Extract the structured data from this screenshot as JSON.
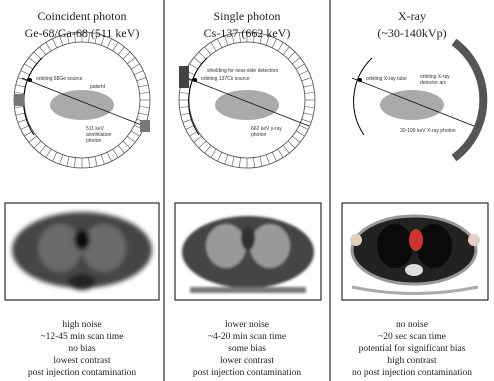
{
  "columns": [
    {
      "title": [
        "Coincident photon",
        "Ge-68/Ga-68 (511 keV)"
      ],
      "labels": {
        "source": "orbiting 68Ge source",
        "patient": "patient",
        "photon": [
          "511 keV",
          "annihilation",
          "photon"
        ]
      },
      "notes": [
        "high noise",
        "~12-45 min scan time",
        "no bias",
        "lowest contrast",
        "post injection contamination"
      ]
    },
    {
      "title": [
        "Single photon",
        "Cs-137 (662 keV)"
      ],
      "labels": {
        "shielding": "shielding for near-side detectors",
        "source": "orbiting 137Cs source",
        "photon": [
          "662 keV γ-ray",
          "photon"
        ]
      },
      "notes": [
        "lower noise",
        "~4-20 min scan time",
        "some bias",
        "lower contrast",
        "post injection contamination"
      ]
    },
    {
      "title": [
        "X-ray",
        "(~30-140kVp)"
      ],
      "labels": {
        "source": "orbiting X-ray tube",
        "detector": [
          "orbiting X-ray",
          "detector arc"
        ],
        "photon": "30-100 keV X-ray photon"
      },
      "notes": [
        "no noise",
        "~20 sec scan time",
        "potential for significant bias",
        "high contrast",
        "no post injection contamination"
      ]
    }
  ]
}
